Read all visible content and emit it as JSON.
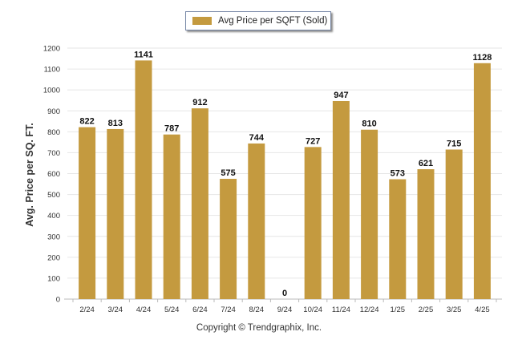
{
  "legend": {
    "label": "Avg Price per SQFT (Sold)"
  },
  "copyright": "Copyright © Trendgraphix, Inc.",
  "chart_data": {
    "type": "bar",
    "categories": [
      "2/24",
      "3/24",
      "4/24",
      "5/24",
      "6/24",
      "7/24",
      "8/24",
      "9/24",
      "10/24",
      "11/24",
      "12/24",
      "1/25",
      "2/25",
      "3/25",
      "4/25"
    ],
    "series": [
      {
        "name": "Avg Price per SQFT (Sold)",
        "values": [
          822,
          813,
          1141,
          787,
          912,
          575,
          744,
          0,
          727,
          947,
          810,
          573,
          621,
          715,
          1128
        ],
        "color": "#c49a3f"
      }
    ],
    "ylabel": "Avg. Price per SQ. FT.",
    "xlabel": "",
    "ylim": [
      0,
      1200
    ],
    "yticks": [
      0,
      100,
      200,
      300,
      400,
      500,
      600,
      700,
      800,
      900,
      1000,
      1100,
      1200
    ],
    "grid": true,
    "legend_position": "top-center",
    "data_labels": true
  }
}
